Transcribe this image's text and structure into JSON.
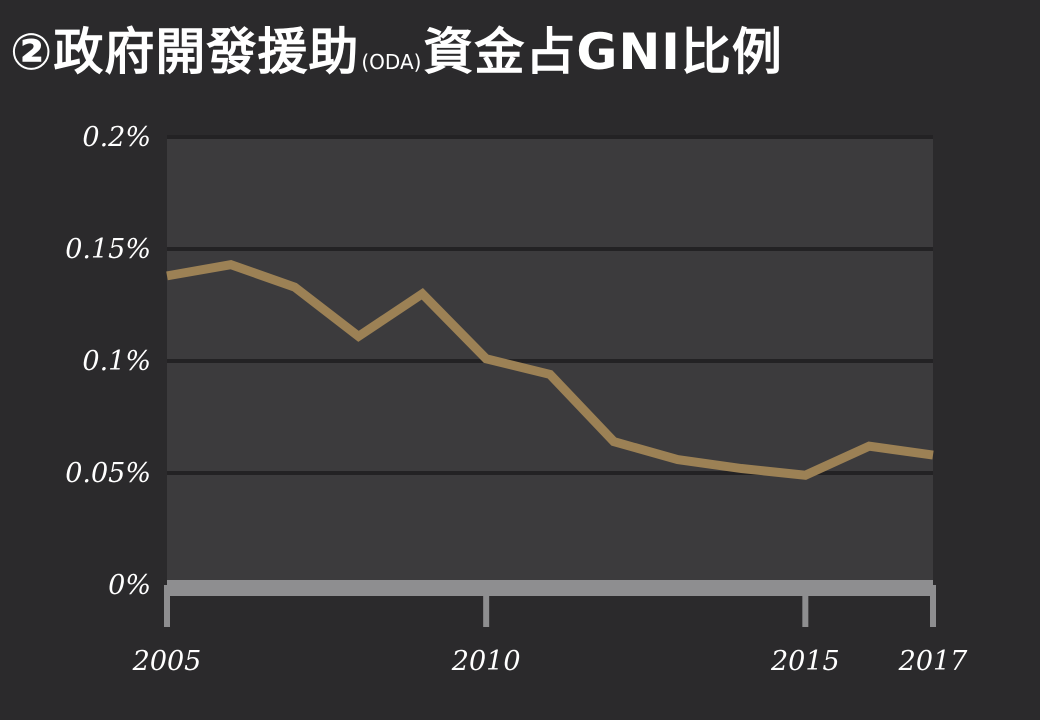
{
  "title": {
    "prefix": "②政府開發援助",
    "abbr": "(ODA)",
    "suffix": "資金占GNI比例"
  },
  "colors": {
    "background": "#2b2a2c",
    "plot_area": "#3c3b3d",
    "gridline": "#232224",
    "axis": "#8e8e90",
    "series": "#9c8155",
    "text": "#ffffff"
  },
  "chart_data": {
    "type": "line",
    "title": "②政府開發援助(ODA)資金占GNI比例",
    "xlabel": "",
    "ylabel": "",
    "x": [
      2005,
      2006,
      2007,
      2008,
      2009,
      2010,
      2011,
      2012,
      2013,
      2014,
      2015,
      2016,
      2017
    ],
    "series": [
      {
        "values": [
          0.138,
          0.143,
          0.133,
          0.111,
          0.13,
          0.101,
          0.094,
          0.064,
          0.056,
          0.052,
          0.049,
          0.062,
          0.058
        ]
      }
    ],
    "xlim": [
      2005,
      2017
    ],
    "ylim": [
      0,
      0.2
    ],
    "x_tick_labels": [
      "2005",
      "2010",
      "2015",
      "2017"
    ],
    "x_ticks": [
      2005,
      2010,
      2015,
      2017
    ],
    "y_tick_labels": [
      "0%",
      "0.05%",
      "0.1%",
      "0.15%",
      "0.2%"
    ],
    "y_ticks": [
      0,
      0.05,
      0.1,
      0.15,
      0.2
    ],
    "grid": true,
    "legend": "none"
  }
}
